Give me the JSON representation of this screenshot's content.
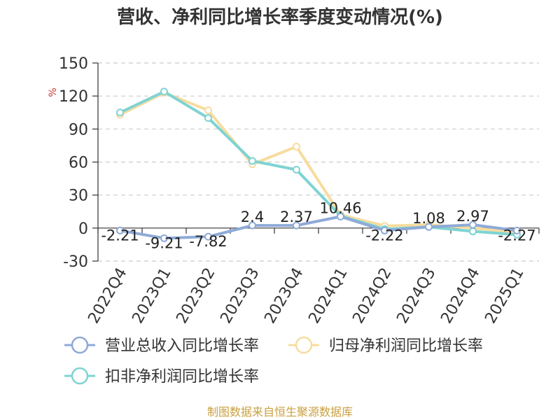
{
  "title": "营收、净利同比增长率季度变动情况(%)",
  "source": "制图数据来自恒生聚源数据库",
  "colors": {
    "revenue": "#8eaad8",
    "parent": "#f7dc9f",
    "deducted": "#7fd3d3",
    "grid": "#cccccc",
    "axis": "#333333"
  },
  "chart_data": {
    "type": "line",
    "ylabel": "%",
    "ylim": [
      -30,
      150
    ],
    "yticks": [
      -30,
      0,
      30,
      60,
      90,
      120,
      150
    ],
    "categories": [
      "2022Q4",
      "2023Q1",
      "2023Q2",
      "2023Q3",
      "2023Q4",
      "2024Q1",
      "2024Q2",
      "2024Q3",
      "2024Q4",
      "2025Q1"
    ],
    "grid": true,
    "legend_position": "bottom",
    "series": [
      {
        "name": "营业总收入同比增长率",
        "color": "#8eaad8",
        "values": [
          -2.21,
          -9.21,
          -7.82,
          2.4,
          2.37,
          10.46,
          -2.22,
          1.08,
          2.97,
          -2.27
        ],
        "labels": [
          "-2.21",
          "-9.21",
          "-7.82",
          "2.4",
          "2.37",
          "10.46",
          "-2.22",
          "1.08",
          "2.97",
          "-2.27"
        ]
      },
      {
        "name": "归母净利润同比增长率",
        "color": "#f7dc9f",
        "values": [
          103,
          123,
          107,
          58,
          74,
          12,
          2,
          3,
          0,
          -4
        ]
      },
      {
        "name": "扣非净利润同比增长率",
        "color": "#7fd3d3",
        "values": [
          105,
          124,
          100,
          61,
          53,
          11,
          -1,
          1,
          -3,
          -6
        ]
      }
    ]
  }
}
